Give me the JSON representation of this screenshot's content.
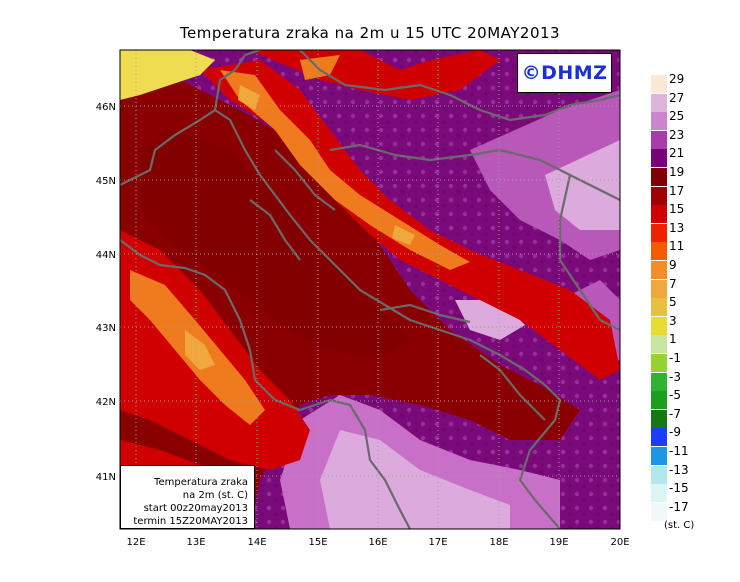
{
  "title": "Temperatura zraka na 2m u 15 UTC 20MAY2013",
  "copyright": "©DHMZ",
  "info_box": {
    "lines": [
      "Temperatura zraka",
      "na 2m (st. C)",
      "start 00z20may2013",
      "termin 15Z20MAY2013"
    ]
  },
  "axes": {
    "lon_ticks": [
      "12E",
      "13E",
      "14E",
      "15E",
      "16E",
      "17E",
      "18E",
      "19E",
      "20E"
    ],
    "lat_ticks": [
      "46N",
      "45N",
      "44N",
      "43N",
      "42N",
      "41N"
    ]
  },
  "legend": {
    "unit": "(st. C)",
    "labels": [
      "29",
      "27",
      "25",
      "23",
      "21",
      "19",
      "17",
      "15",
      "13",
      "11",
      "9",
      "7",
      "5",
      "3",
      "1",
      "-1",
      "-3",
      "-5",
      "-7",
      "-9",
      "-11",
      "-13",
      "-15",
      "-17"
    ],
    "colors": [
      "#fbe9d8",
      "#dcb4dc",
      "#cd83cd",
      "#a83ca8",
      "#780078",
      "#820000",
      "#a00000",
      "#d10000",
      "#ee2200",
      "#f55a00",
      "#f58c28",
      "#f0a83c",
      "#e8c040",
      "#e6dc32",
      "#c8e6a0",
      "#96d232",
      "#2eb42e",
      "#1e9e1e",
      "#147814",
      "#1e3cff",
      "#1e96e6",
      "#b4e6f0",
      "#dcf5f5",
      "#f0fafa"
    ]
  },
  "colors": {
    "hot": "#f0dc50",
    "orange": "#f07a1e",
    "red": "#d10000",
    "darkred": "#8a0000",
    "purple": "#7a0a7a",
    "lightpurple": "#c870c8",
    "pinkpurple": "#dcaadc",
    "coast": "#6a6a6a"
  }
}
